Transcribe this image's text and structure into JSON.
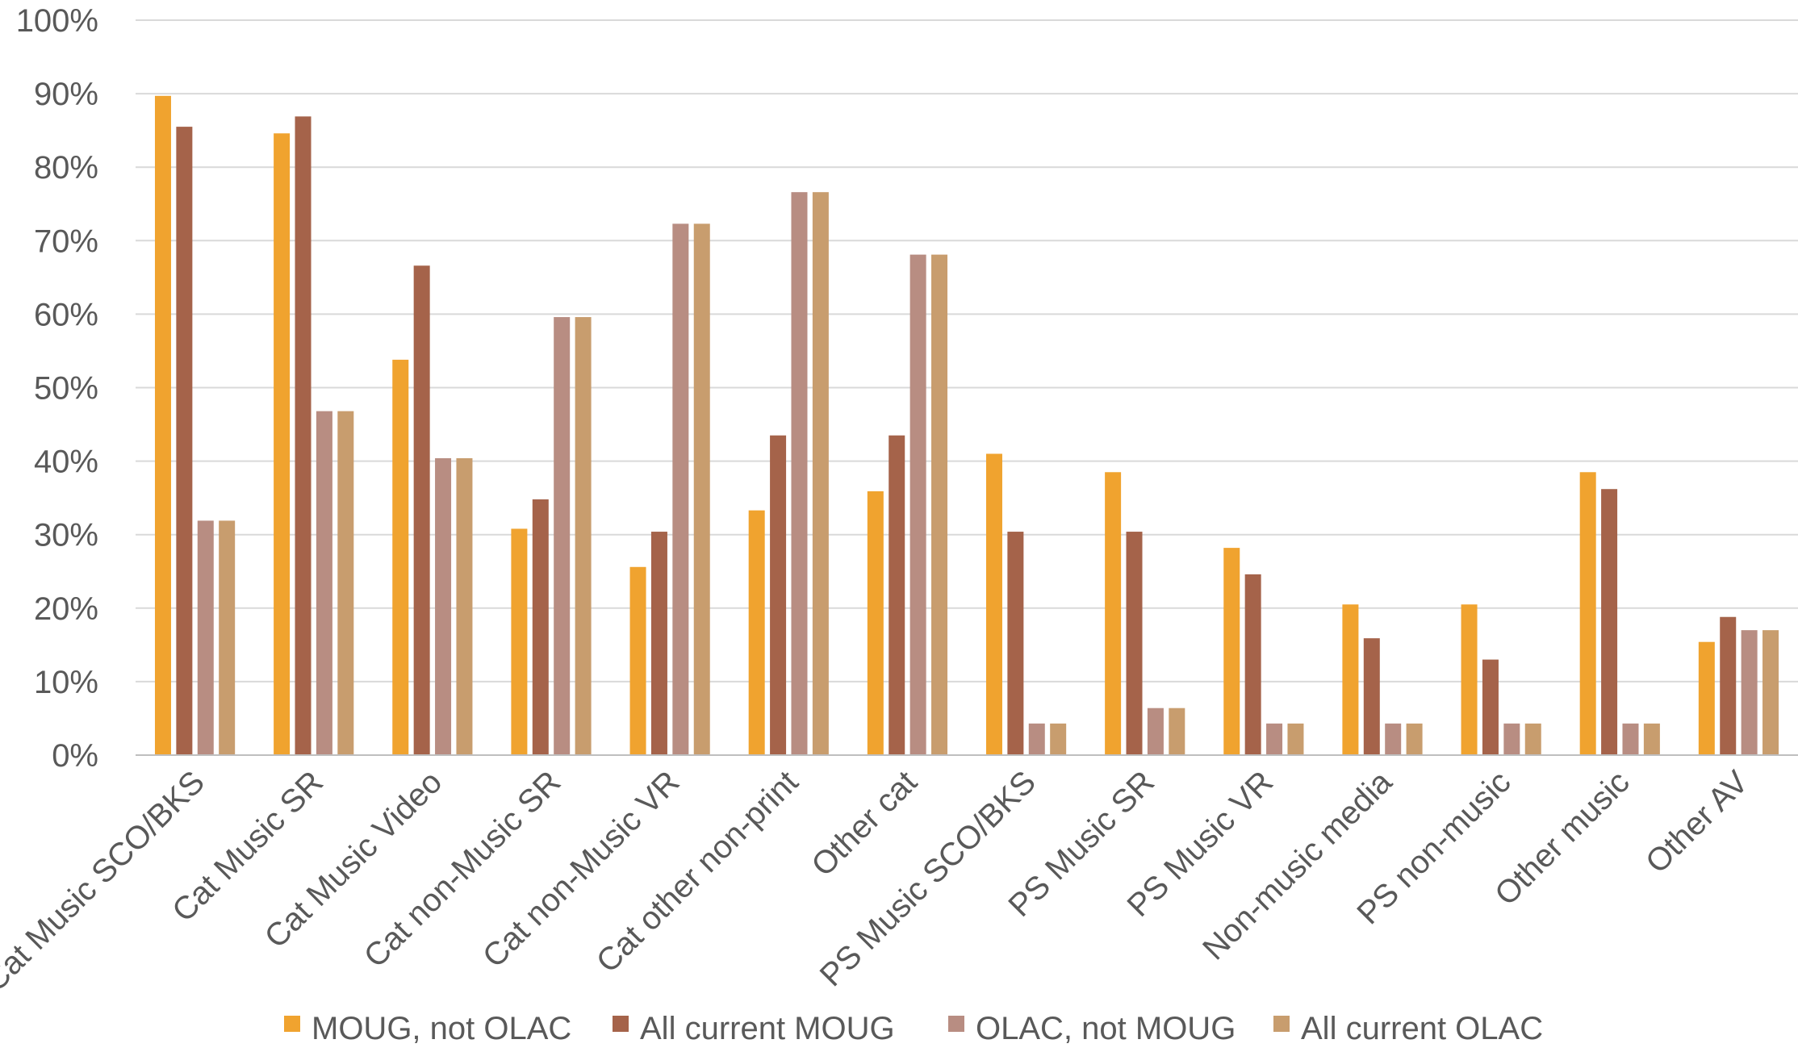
{
  "chart_data": {
    "type": "bar",
    "categories": [
      "Cat Music SCO/BKS",
      "Cat Music SR",
      "Cat Music Video",
      "Cat non-Music SR",
      "Cat non-Music VR",
      "Cat other non-print",
      "Other cat",
      "PS Music SCO/BKS",
      "PS Music SR",
      "PS Music VR",
      "Non-music media",
      "PS non-music",
      "Other music",
      "Other AV"
    ],
    "series": [
      {
        "name": "MOUG, not OLAC",
        "color": "#F0A32F",
        "values": [
          89.7,
          84.6,
          53.8,
          30.8,
          25.6,
          33.3,
          35.9,
          41.0,
          38.5,
          28.2,
          20.5,
          20.5,
          38.5,
          15.4
        ]
      },
      {
        "name": "All current MOUG",
        "color": "#A5634A",
        "values": [
          85.5,
          86.9,
          66.6,
          34.8,
          30.4,
          43.5,
          43.5,
          30.4,
          30.4,
          24.6,
          15.9,
          13.0,
          36.2,
          18.8
        ]
      },
      {
        "name": "OLAC, not MOUG",
        "color": "#B88D82",
        "values": [
          31.9,
          46.8,
          40.4,
          59.6,
          72.3,
          76.6,
          68.1,
          4.3,
          6.4,
          4.3,
          4.3,
          4.3,
          4.3,
          17.0
        ]
      },
      {
        "name": "All current OLAC",
        "color": "#C89D6E",
        "values": [
          31.9,
          46.8,
          40.4,
          59.6,
          72.3,
          76.6,
          68.1,
          4.3,
          6.4,
          4.3,
          4.3,
          4.3,
          4.3,
          17.0
        ]
      }
    ],
    "yticks": [
      "0%",
      "10%",
      "20%",
      "30%",
      "40%",
      "50%",
      "60%",
      "70%",
      "80%",
      "90%",
      "100%"
    ],
    "ylim": [
      0,
      100
    ],
    "grid": true,
    "legend_position": "bottom",
    "gridline_color": "#D9D9D9",
    "axis_color": "#BFBFBF"
  }
}
